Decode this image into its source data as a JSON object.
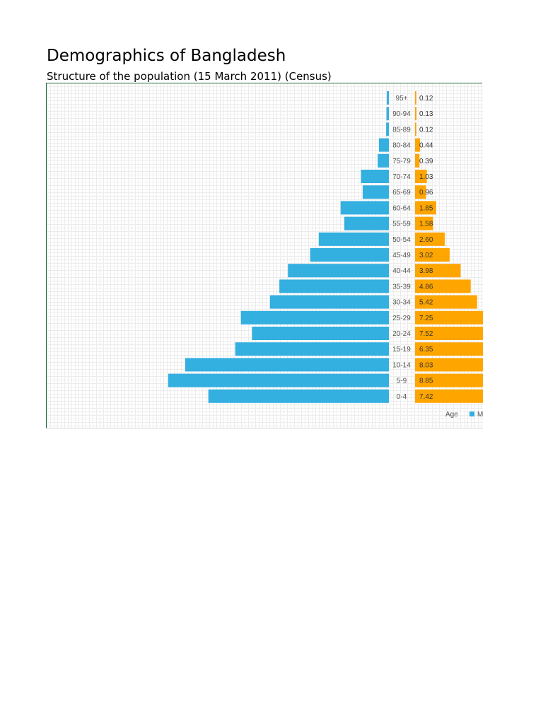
{
  "page": {
    "title": "Demographics of Bangladesh",
    "subtitle": "Structure of the population (15 March 2011) (Census)"
  },
  "chart_data": {
    "type": "bar",
    "orientation": "horizontal-population-pyramid",
    "categories": [
      "95+",
      "90-94",
      "85-89",
      "80-84",
      "75-79",
      "70-74",
      "65-69",
      "60-64",
      "55-59",
      "50-54",
      "45-49",
      "40-44",
      "35-39",
      "30-34",
      "25-29",
      "20-24",
      "15-19",
      "10-14",
      "5-9",
      "0-4"
    ],
    "series": [
      {
        "name": "M",
        "color": "#33afe0",
        "side": "left",
        "values": [
          0.12,
          0.14,
          0.16,
          0.58,
          0.65,
          1.63,
          1.53,
          2.82,
          2.6,
          4.1,
          4.6,
          5.9,
          6.4,
          6.95,
          8.65,
          8.0,
          8.98,
          11.9,
          12.9,
          10.55
        ]
      },
      {
        "name": "",
        "color": "#ffa500",
        "side": "right",
        "values": [
          0.12,
          0.13,
          0.12,
          0.44,
          0.39,
          1.03,
          0.96,
          1.85,
          1.58,
          2.6,
          3.02,
          3.98,
          4.86,
          5.42,
          7.25,
          7.52,
          6.35,
          8.03,
          8.85,
          7.42
        ]
      }
    ],
    "right_value_labels": [
      "0.12",
      "0.13",
      "0.12",
      "0.44",
      "0.39",
      "1.03",
      "0.96",
      "1.85",
      "1.58",
      "2.60",
      "3.02",
      "3.98",
      "4.86",
      "5.42",
      "7.25",
      "7.52",
      "6.35",
      "8.03",
      "8.85",
      "7.42"
    ],
    "legend": {
      "title": "Age",
      "entries": [
        {
          "name": "M",
          "color": "#33afe0"
        }
      ],
      "placement": "bottom-right"
    },
    "grid": true,
    "xlabel": "",
    "ylabel": "Age"
  }
}
